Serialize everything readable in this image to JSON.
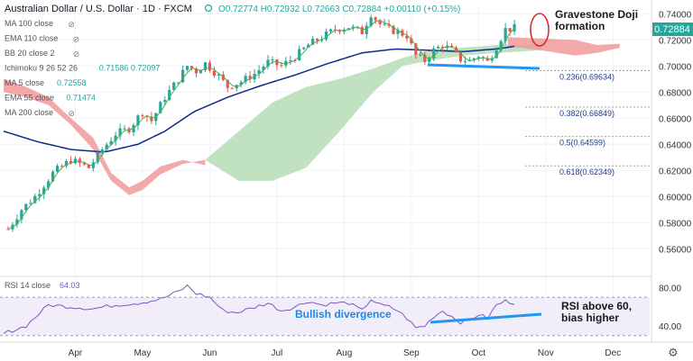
{
  "header": {
    "title": "Australian Dollar / U.S. Dollar · 1D · FXCM",
    "ohlc": "O0.72774 H0.72932 L0.72663 C0.72884 +0.00110 (+0.15%)"
  },
  "indicators": [
    {
      "label": "MA 100 close",
      "value": ""
    },
    {
      "label": "EMA 110 close",
      "value": ""
    },
    {
      "label": "BB 20 close 2",
      "value": ""
    },
    {
      "label": "Ichimoku 9 26 52 26",
      "value": "0.71586  0.72097"
    },
    {
      "label": "MA 5 close",
      "value": "0.72558"
    },
    {
      "label": "EMA 55 close",
      "value": "0.71474"
    },
    {
      "label": "MA 200 close",
      "value": ""
    }
  ],
  "rsi": {
    "label": "RSI 14 close",
    "value": "64.03",
    "ticks": [
      "80.00",
      "40.00"
    ]
  },
  "annotations": {
    "gravestone": "Gravestone Doji formation",
    "bullish": "Bullish divergence",
    "rsi_note": "RSI above 60, bias higher"
  },
  "price_tag": "0.72884",
  "colors": {
    "up": "#26a69a",
    "down": "#ef5350",
    "ema55": "#0d2a8a",
    "ma5": "#4caf50",
    "cloud_bull": "#a5d6a7",
    "cloud_bear": "#ef9a9a",
    "rsi": "#7e57c2",
    "trend": "#2196f3"
  },
  "chart_data": {
    "type": "candlestick",
    "symbol": "AUDUSD",
    "timeframe": "1D",
    "ylim": [
      0.545,
      0.745
    ],
    "y_ticks": [
      0.56,
      0.58,
      0.6,
      0.62,
      0.64,
      0.66,
      0.68,
      0.7,
      0.72,
      0.74
    ],
    "x_labels": [
      "Apr",
      "May",
      "Jun",
      "Jul",
      "Aug",
      "Sep",
      "Oct",
      "Nov",
      "Dec"
    ],
    "x_label_days": [
      32,
      62,
      92,
      122,
      152,
      182,
      212,
      242,
      272
    ],
    "last_close": 0.72884,
    "fib_levels": [
      {
        "label": "0.236(0.69634)",
        "value": 0.69634
      },
      {
        "label": "0.382(0.66849)",
        "value": 0.66849
      },
      {
        "label": "0.5(0.64599)",
        "value": 0.64599
      },
      {
        "label": "0.618(0.62349)",
        "value": 0.62349
      }
    ],
    "price_path": [
      [
        2,
        0.575
      ],
      [
        8,
        0.59
      ],
      [
        14,
        0.6
      ],
      [
        22,
        0.618
      ],
      [
        30,
        0.628
      ],
      [
        38,
        0.622
      ],
      [
        44,
        0.636
      ],
      [
        50,
        0.648
      ],
      [
        56,
        0.652
      ],
      [
        62,
        0.665
      ],
      [
        66,
        0.658
      ],
      [
        72,
        0.676
      ],
      [
        78,
        0.69
      ],
      [
        82,
        0.7
      ],
      [
        86,
        0.696
      ],
      [
        90,
        0.702
      ],
      [
        95,
        0.694
      ],
      [
        100,
        0.684
      ],
      [
        106,
        0.688
      ],
      [
        112,
        0.694
      ],
      [
        118,
        0.703
      ],
      [
        124,
        0.7
      ],
      [
        130,
        0.707
      ],
      [
        136,
        0.716
      ],
      [
        142,
        0.722
      ],
      [
        148,
        0.728
      ],
      [
        154,
        0.73
      ],
      [
        160,
        0.726
      ],
      [
        164,
        0.74
      ],
      [
        168,
        0.732
      ],
      [
        172,
        0.728
      ],
      [
        176,
        0.726
      ],
      [
        180,
        0.723
      ],
      [
        184,
        0.708
      ],
      [
        188,
        0.704
      ],
      [
        192,
        0.712
      ],
      [
        196,
        0.716
      ],
      [
        200,
        0.712
      ],
      [
        204,
        0.705
      ],
      [
        208,
        0.704
      ],
      [
        212,
        0.708
      ],
      [
        216,
        0.703
      ],
      [
        220,
        0.715
      ],
      [
        224,
        0.728
      ],
      [
        228,
        0.729
      ]
    ],
    "ema55": [
      [
        0,
        0.65
      ],
      [
        15,
        0.642
      ],
      [
        30,
        0.636
      ],
      [
        45,
        0.634
      ],
      [
        60,
        0.64
      ],
      [
        72,
        0.65
      ],
      [
        85,
        0.665
      ],
      [
        100,
        0.676
      ],
      [
        115,
        0.685
      ],
      [
        130,
        0.693
      ],
      [
        145,
        0.702
      ],
      [
        160,
        0.71
      ],
      [
        175,
        0.713
      ],
      [
        190,
        0.712
      ],
      [
        205,
        0.711
      ],
      [
        220,
        0.713
      ],
      [
        228,
        0.715
      ]
    ],
    "rsi": {
      "ylim": [
        25,
        90
      ],
      "levels": [
        70,
        30
      ],
      "values": [
        [
          0,
          32
        ],
        [
          10,
          40
        ],
        [
          20,
          62
        ],
        [
          30,
          60
        ],
        [
          40,
          58
        ],
        [
          50,
          62
        ],
        [
          60,
          64
        ],
        [
          70,
          68
        ],
        [
          78,
          76
        ],
        [
          82,
          82
        ],
        [
          86,
          74
        ],
        [
          92,
          70
        ],
        [
          98,
          56
        ],
        [
          104,
          54
        ],
        [
          110,
          58
        ],
        [
          118,
          64
        ],
        [
          124,
          56
        ],
        [
          130,
          60
        ],
        [
          136,
          66
        ],
        [
          142,
          62
        ],
        [
          148,
          64
        ],
        [
          154,
          64
        ],
        [
          160,
          56
        ],
        [
          164,
          68
        ],
        [
          168,
          62
        ],
        [
          172,
          60
        ],
        [
          176,
          56
        ],
        [
          180,
          48
        ],
        [
          184,
          38
        ],
        [
          188,
          40
        ],
        [
          192,
          50
        ],
        [
          196,
          56
        ],
        [
          200,
          50
        ],
        [
          204,
          44
        ],
        [
          208,
          46
        ],
        [
          212,
          52
        ],
        [
          216,
          48
        ],
        [
          220,
          62
        ],
        [
          224,
          66
        ],
        [
          228,
          64
        ]
      ]
    }
  }
}
